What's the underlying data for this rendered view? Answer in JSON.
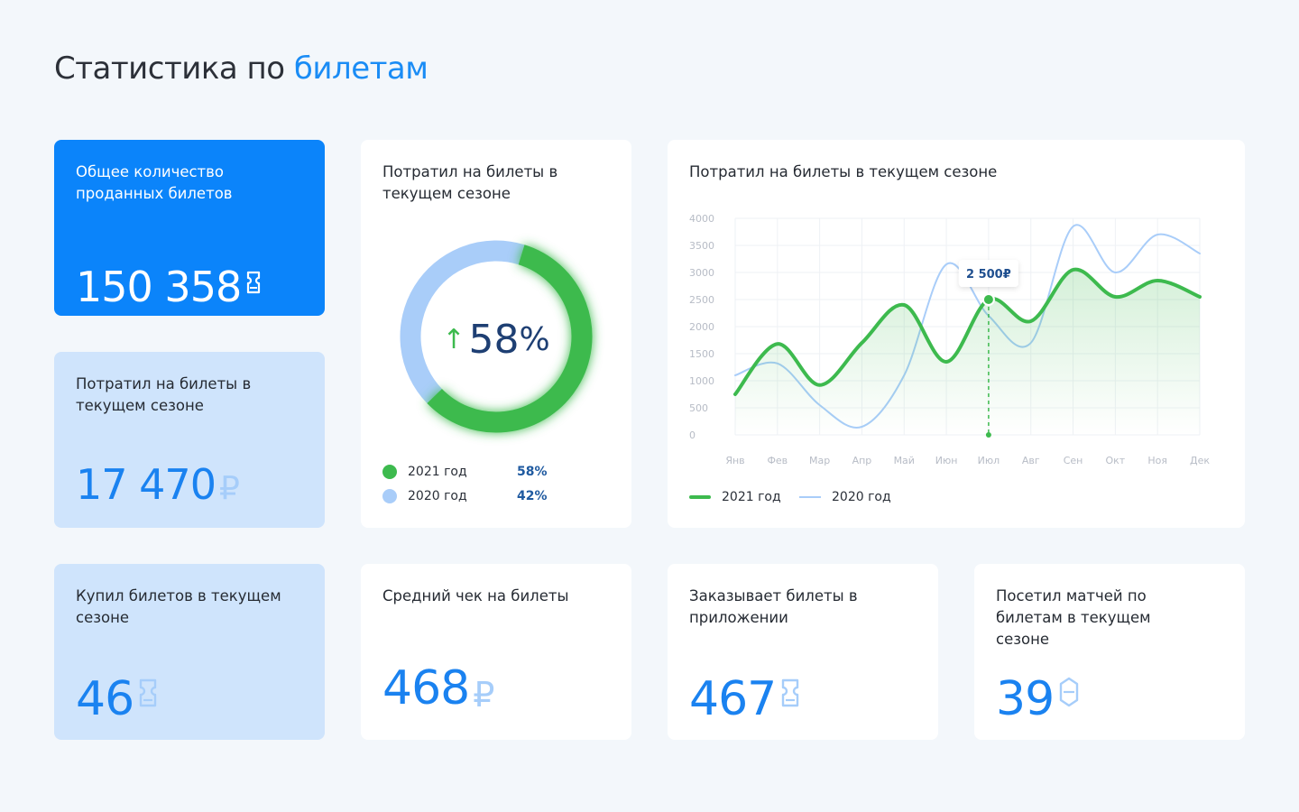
{
  "page": {
    "title_main": "Статистика по ",
    "title_accent": "билетам"
  },
  "cards": {
    "total_sold": {
      "label": "Общее количество проданных билетов",
      "value": "150 358",
      "icon": "ticket-icon"
    },
    "spent_season": {
      "label": "Потратил на билеты в текущем сезоне",
      "value": "17 470",
      "unit": "₽"
    },
    "bought_season": {
      "label": "Купил билетов в текущем сезоне",
      "value": "46",
      "icon": "ticket-icon"
    },
    "average_check": {
      "label": "Средний чек на билеты",
      "value": "468",
      "unit": "₽"
    },
    "app_orders": {
      "label": "Заказывает билеты в приложении",
      "value": "467",
      "icon": "ticket-icon"
    },
    "matches_visited": {
      "label": "Посетил матчей по билетам в текущем сезоне",
      "value": "39",
      "icon": "shield-icon"
    }
  },
  "donut": {
    "label": "Потратил на билеты в текущем сезоне",
    "center_value": "58",
    "center_unit": "%",
    "arrow": "↑",
    "legend": [
      {
        "name": "2021 год",
        "pct": "58%",
        "value": 58,
        "color": "#3dba4e"
      },
      {
        "name": "2020 год",
        "pct": "42%",
        "value": 42,
        "color": "#a9cdf9"
      }
    ]
  },
  "chart_data": {
    "type": "line",
    "title": "Потратил на билеты в текущем сезоне",
    "categories": [
      "Янв",
      "Фев",
      "Мар",
      "Апр",
      "Май",
      "Июн",
      "Июл",
      "Авг",
      "Сен",
      "Окт",
      "Ноя",
      "Дек"
    ],
    "ylim": [
      0,
      4000
    ],
    "yticks": [
      0,
      500,
      1000,
      1500,
      2000,
      2500,
      3000,
      3500,
      4000
    ],
    "grid": true,
    "legend_position": "bottom-left",
    "series": [
      {
        "name": "2021 год",
        "color": "#3dba4e",
        "values": [
          750,
          1680,
          920,
          1700,
          2400,
          1350,
          2500,
          2100,
          3050,
          2550,
          2850,
          2550
        ]
      },
      {
        "name": "2020 год",
        "color": "#a9cdf9",
        "values": [
          1100,
          1320,
          550,
          150,
          1100,
          3150,
          2200,
          1700,
          3850,
          3000,
          3700,
          3350
        ]
      }
    ],
    "annotation": {
      "category": "Июл",
      "value": 2500,
      "label": "2 500₽"
    }
  }
}
